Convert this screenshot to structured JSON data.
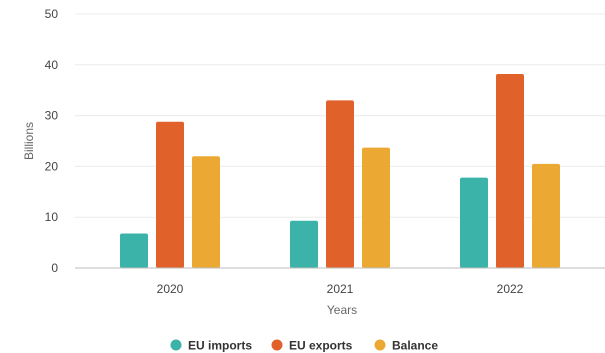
{
  "chart_data": {
    "type": "bar",
    "categories": [
      "2020",
      "2021",
      "2022"
    ],
    "series": [
      {
        "name": "EU imports",
        "values": [
          6.8,
          9.3,
          17.8
        ],
        "color": "#3bb3a8"
      },
      {
        "name": "EU exports",
        "values": [
          28.8,
          33.0,
          38.2
        ],
        "color": "#e0622a"
      },
      {
        "name": "Balance",
        "values": [
          22.0,
          23.7,
          20.5
        ],
        "color": "#eba934"
      }
    ],
    "title": "",
    "xlabel": "Years",
    "ylabel": "Billions",
    "ylim": [
      0,
      50
    ],
    "yticks": [
      0,
      10,
      20,
      30,
      40,
      50
    ],
    "grid": true,
    "legend_position": "bottom"
  }
}
